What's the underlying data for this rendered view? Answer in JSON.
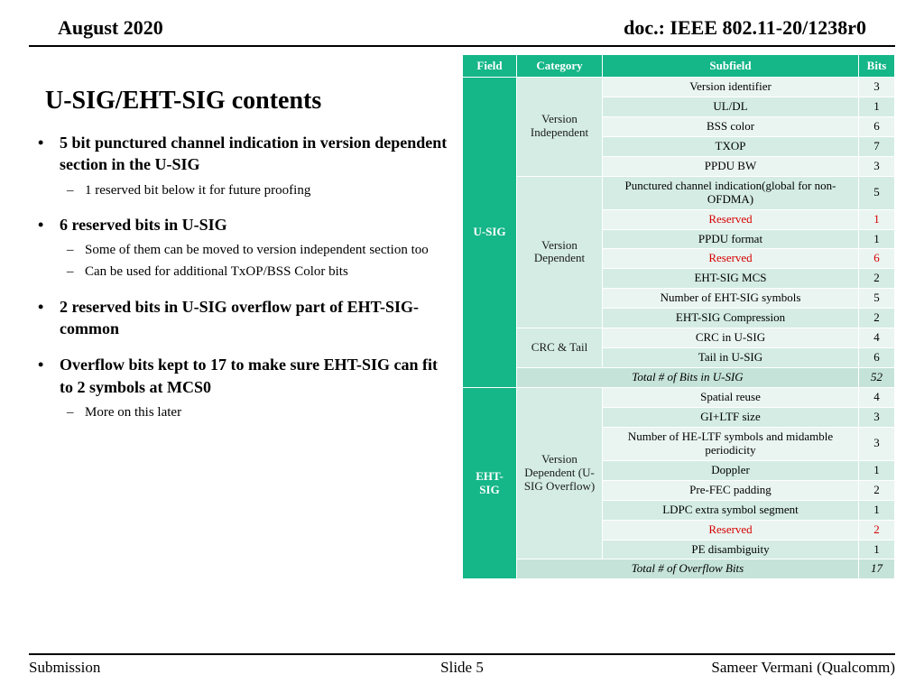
{
  "header": {
    "date": "August 2020",
    "docnum": "doc.: IEEE 802.11-20/1238r0"
  },
  "slide_title": "U-SIG/EHT-SIG contents",
  "bullets": [
    {
      "text": "5 bit punctured channel indication in version dependent section  in the U-SIG",
      "subs": [
        "1 reserved bit below it for future proofing"
      ]
    },
    {
      "text": "6 reserved bits in U-SIG",
      "subs": [
        "Some of them can be moved to version independent section too",
        "Can be used for additional TxOP/BSS Color bits"
      ]
    },
    {
      "text": "2 reserved bits in U-SIG overflow part of EHT-SIG-common",
      "subs": []
    },
    {
      "text": "Overflow bits kept to 17 to make sure EHT-SIG can fit to 2 symbols at MCS0",
      "subs": [
        "More on this later"
      ]
    }
  ],
  "table": {
    "headers": [
      "Field",
      "Category",
      "Subfield",
      "Bits"
    ],
    "colors": {
      "header_bg": "#15b688",
      "header_fg": "#ffffff",
      "field_bg": "#15b688",
      "cat_bg": "#d4ece4",
      "row_odd": "#eaf5f1",
      "row_even": "#d4ece4",
      "total_bg": "#c5e3d9",
      "reserved_color": "#d60000"
    },
    "usig": {
      "field_label": "U-SIG",
      "version_independent": {
        "label": "Version Independent",
        "rows": [
          {
            "sub": "Version identifier",
            "bits": "3"
          },
          {
            "sub": "UL/DL",
            "bits": "1"
          },
          {
            "sub": "BSS color",
            "bits": "6"
          },
          {
            "sub": "TXOP",
            "bits": "7"
          },
          {
            "sub": "PPDU BW",
            "bits": "3"
          }
        ]
      },
      "version_dependent": {
        "label": "Version Dependent",
        "rows": [
          {
            "sub": "Punctured channel indication(global for non-OFDMA)",
            "bits": "5"
          },
          {
            "sub": "Reserved",
            "bits": "1",
            "red": true
          },
          {
            "sub": "PPDU format",
            "bits": "1"
          },
          {
            "sub": "Reserved",
            "bits": "6",
            "red": true
          },
          {
            "sub": "EHT-SIG MCS",
            "bits": "2"
          },
          {
            "sub": "Number of EHT-SIG symbols",
            "bits": "5"
          },
          {
            "sub": "EHT-SIG Compression",
            "bits": "2"
          }
        ]
      },
      "crc_tail": {
        "label": "CRC & Tail",
        "rows": [
          {
            "sub": "CRC in U-SIG",
            "bits": "4"
          },
          {
            "sub": "Tail in U-SIG",
            "bits": "6"
          }
        ]
      },
      "total": {
        "sub": "Total # of Bits in U-SIG",
        "bits": "52"
      }
    },
    "ehtsig": {
      "field_label": "EHT-SIG",
      "version_dependent_overflow": {
        "label": "Version Dependent (U-SIG Overflow)",
        "rows": [
          {
            "sub": "Spatial reuse",
            "bits": "4"
          },
          {
            "sub": "GI+LTF size",
            "bits": "3"
          },
          {
            "sub": "Number of HE-LTF symbols and midamble periodicity",
            "bits": "3"
          },
          {
            "sub": "Doppler",
            "bits": "1"
          },
          {
            "sub": "Pre-FEC padding",
            "bits": "2"
          },
          {
            "sub": "LDPC extra symbol segment",
            "bits": "1"
          },
          {
            "sub": "Reserved",
            "bits": "2",
            "red": true
          },
          {
            "sub": "PE disambiguity",
            "bits": "1"
          }
        ]
      },
      "total": {
        "sub": "Total # of Overflow Bits",
        "bits": "17"
      }
    }
  },
  "footer": {
    "left": "Submission",
    "center": "Slide 5",
    "right": "Sameer Vermani (Qualcomm)"
  }
}
